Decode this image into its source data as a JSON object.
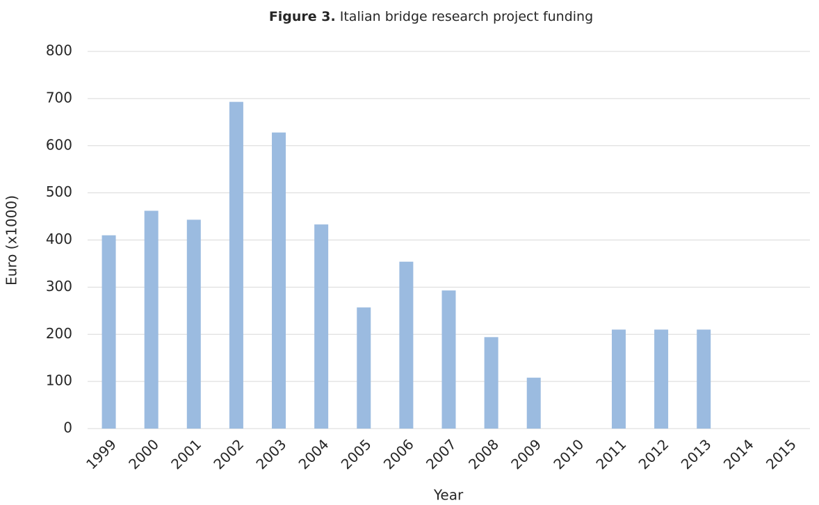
{
  "chart_data": {
    "type": "bar",
    "title_label": "Figure 3.",
    "title": "Italian bridge research project funding",
    "x_label": "Year",
    "y_label": "Euro (x1000)",
    "categories": [
      "1999",
      "2000",
      "2001",
      "2002",
      "2003",
      "2004",
      "2005",
      "2006",
      "2007",
      "2008",
      "2009",
      "2010",
      "2011",
      "2012",
      "2013",
      "2014",
      "2015"
    ],
    "values": [
      410,
      462,
      443,
      693,
      628,
      433,
      257,
      354,
      293,
      194,
      108,
      0,
      210,
      210,
      210,
      0,
      0
    ],
    "color": "#9bbbe0",
    "ylim": [
      0,
      800
    ],
    "yticks": [
      0,
      100,
      200,
      300,
      400,
      500,
      600,
      700,
      800
    ],
    "grid": true
  }
}
